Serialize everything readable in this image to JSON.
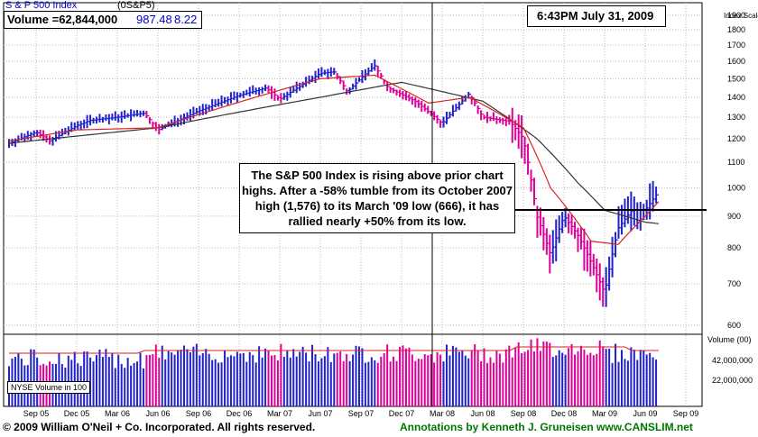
{
  "header": {
    "symbol_name": "S & P 500 Index",
    "ticker": "(0S&P5)",
    "volume_text": "Volume =62,844,000",
    "last_price": "987.48",
    "change": "8.22",
    "timestamp": "6:43PM July 31, 2009"
  },
  "axis": {
    "price_scale_label": "Index Scale",
    "volume_scale_label": "Volume (00)",
    "volume_inset_label": "NYSE Volume in 100"
  },
  "annotation_box": {
    "text": "The S&P 500 Index is rising above prior chart highs. After a -58% tumble from its October 2007 high (1,576) to its March '09 low (666), it has rallied nearly +50% from its low."
  },
  "footer": {
    "copyright": "© 2009 William O'Neil + Co. Incorporated. All rights reserved.",
    "annotations": "Annotations by Kenneth J. Gruneisen www.CANSLIM.net"
  },
  "colors": {
    "up": "#2222cc",
    "down": "#dd0099",
    "ma_short": "#dd2222",
    "ma_long": "#333333",
    "grid": "#bbbbbb",
    "green_text": "#007700"
  },
  "chart_data": [
    {
      "type": "line",
      "title": "S & P 500 Index",
      "ylabel": "Index Scale",
      "y_scale": "log",
      "ylim": [
        580,
        1990
      ],
      "y_ticks": [
        600,
        700,
        800,
        900,
        1000,
        1100,
        1200,
        1300,
        1400,
        1500,
        1600,
        1700,
        1800,
        1900
      ],
      "x_ticks": [
        "Sep 05",
        "Dec 05",
        "Mar 06",
        "Jun 06",
        "Sep 06",
        "Dec 06",
        "Mar 07",
        "Jun 07",
        "Sep 07",
        "Dec 07",
        "Mar 08",
        "Jun 08",
        "Sep 08",
        "Dec 08",
        "Mar 09",
        "Jun 09",
        "Sep 09"
      ],
      "series": [
        {
          "name": "weekly close",
          "x": [
            "Jul 05",
            "Sep 05",
            "Oct 05",
            "Dec 05",
            "Jan 06",
            "Mar 06",
            "May 06",
            "Jun 06",
            "Sep 06",
            "Dec 06",
            "Feb 07",
            "Mar 07",
            "Jun 07",
            "Jul 07",
            "Aug 07",
            "Oct 07",
            "Nov 07",
            "Jan 08",
            "Mar 08",
            "May 08",
            "Jun 08",
            "Aug 08",
            "Sep 08",
            "Oct 08",
            "Nov 08",
            "Dec 08",
            "Jan 09",
            "Mar 09",
            "Apr 09",
            "May 09",
            "Jun 09",
            "Jul 09"
          ],
          "values": [
            1180,
            1230,
            1190,
            1260,
            1285,
            1300,
            1320,
            1240,
            1330,
            1410,
            1450,
            1390,
            1530,
            1540,
            1430,
            1576,
            1450,
            1380,
            1270,
            1420,
            1300,
            1280,
            1200,
            900,
            780,
            900,
            840,
            676,
            860,
            920,
            920,
            987
          ]
        },
        {
          "name": "short moving average",
          "x": [
            "Jul 05",
            "Dec 05",
            "Jun 06",
            "Jun 07",
            "Oct 07",
            "Feb 08",
            "May 08",
            "Sep 08",
            "Nov 08",
            "Feb 09",
            "Apr 09",
            "Jun 09",
            "Jul 09"
          ],
          "values": [
            1190,
            1240,
            1250,
            1500,
            1520,
            1370,
            1400,
            1250,
            1000,
            820,
            810,
            900,
            950
          ]
        },
        {
          "name": "long moving average",
          "x": [
            "Jul 05",
            "Jun 06",
            "Jun 07",
            "Dec 07",
            "Jun 08",
            "Oct 08",
            "Jan 09",
            "Mar 09",
            "Jun 09",
            "Jul 09"
          ],
          "values": [
            1180,
            1250,
            1400,
            1480,
            1380,
            1200,
            1020,
            920,
            880,
            875
          ]
        }
      ],
      "annotations": [
        "resistance line near 950"
      ]
    },
    {
      "type": "bar",
      "title": "Volume (00)",
      "ylabel": "Volume (00)",
      "y_ticks": [
        "22,000,000",
        "42,000,000"
      ],
      "note": "NYSE Volume in 100"
    }
  ]
}
